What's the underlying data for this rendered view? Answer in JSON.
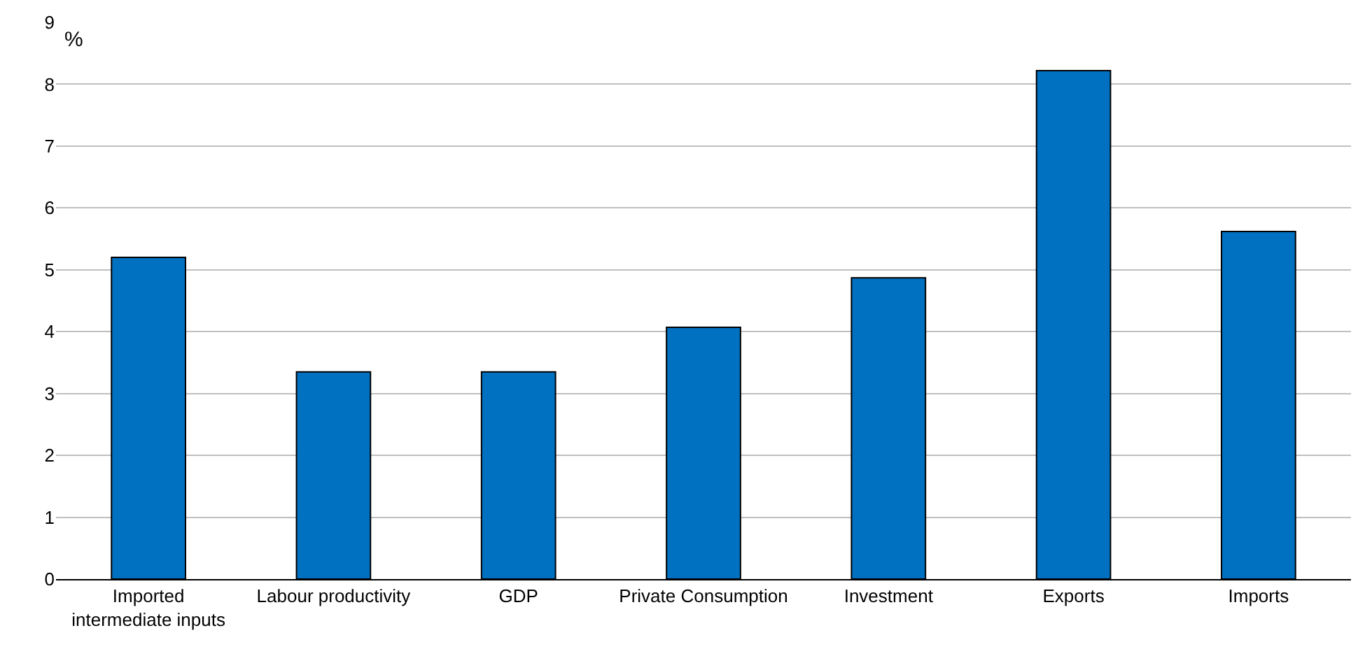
{
  "chart_data": {
    "type": "bar",
    "ylabel": "%",
    "categories": [
      "Imported intermediate inputs",
      "Labour productivity",
      "GDP",
      "Private Consumption",
      "Investment",
      "Exports",
      "Imports"
    ],
    "values": [
      5.2,
      3.35,
      3.35,
      4.07,
      4.87,
      8.22,
      5.62
    ],
    "color": "#0070c0",
    "ylim": [
      0,
      9
    ],
    "yticks": [
      0,
      1,
      2,
      3,
      4,
      5,
      6,
      7,
      8,
      9
    ],
    "grid": "y"
  }
}
